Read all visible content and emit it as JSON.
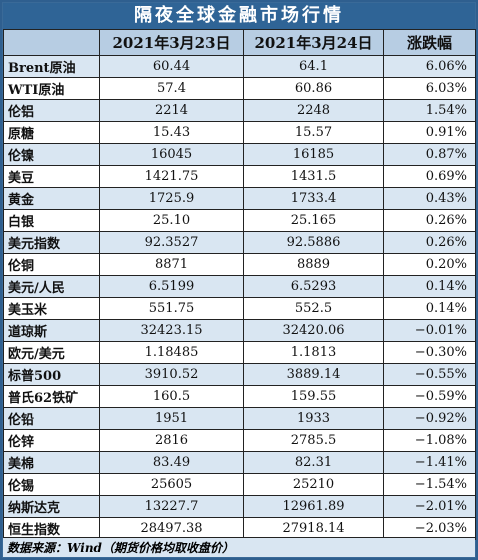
{
  "title": "隔夜全球金融市场行情",
  "headers": [
    "",
    "2021年3月23日",
    "2021年3月24日",
    "涨跌幅"
  ],
  "rows": [
    {
      "name": "Brent原油",
      "d1": "60.44",
      "d2": "64.1",
      "chg": "6.06%"
    },
    {
      "name": "WTI原油",
      "d1": "57.4",
      "d2": "60.86",
      "chg": "6.03%"
    },
    {
      "name": "伦铝",
      "d1": "2214",
      "d2": "2248",
      "chg": "1.54%"
    },
    {
      "name": "原糖",
      "d1": "15.43",
      "d2": "15.57",
      "chg": "0.91%"
    },
    {
      "name": "伦镍",
      "d1": "16045",
      "d2": "16185",
      "chg": "0.87%"
    },
    {
      "name": "美豆",
      "d1": "1421.75",
      "d2": "1431.5",
      "chg": "0.69%"
    },
    {
      "name": "黄金",
      "d1": "1725.9",
      "d2": "1733.4",
      "chg": "0.43%"
    },
    {
      "name": "白银",
      "d1": "25.10",
      "d2": "25.165",
      "chg": "0.26%"
    },
    {
      "name": "美元指数",
      "d1": "92.3527",
      "d2": "92.5886",
      "chg": "0.26%"
    },
    {
      "name": "伦铜",
      "d1": "8871",
      "d2": "8889",
      "chg": "0.20%"
    },
    {
      "name": "美元/人民",
      "d1": "6.5199",
      "d2": "6.5293",
      "chg": "0.14%"
    },
    {
      "name": "美玉米",
      "d1": "551.75",
      "d2": "552.5",
      "chg": "0.14%"
    },
    {
      "name": "道琼斯",
      "d1": "32423.15",
      "d2": "32420.06",
      "chg": "−0.01%"
    },
    {
      "name": "欧元/美元",
      "d1": "1.18485",
      "d2": "1.1813",
      "chg": "−0.30%"
    },
    {
      "name": "标普500",
      "d1": "3910.52",
      "d2": "3889.14",
      "chg": "−0.55%"
    },
    {
      "name": "普氏62铁矿",
      "d1": "160.5",
      "d2": "159.55",
      "chg": "−0.59%"
    },
    {
      "name": "伦铅",
      "d1": "1951",
      "d2": "1933",
      "chg": "−0.92%"
    },
    {
      "name": "伦锌",
      "d1": "2816",
      "d2": "2785.5",
      "chg": "−1.08%"
    },
    {
      "name": "美棉",
      "d1": "83.49",
      "d2": "82.31",
      "chg": "−1.41%"
    },
    {
      "name": "伦锡",
      "d1": "25605",
      "d2": "25210",
      "chg": "−1.54%"
    },
    {
      "name": "纳斯达克",
      "d1": "13227.7",
      "d2": "12961.89",
      "chg": "−2.01%"
    },
    {
      "name": "恒生指数",
      "d1": "28497.38",
      "d2": "27918.14",
      "chg": "−2.03%"
    }
  ],
  "footer": "数据来源：Wind（期货价格均取收盘价）"
}
